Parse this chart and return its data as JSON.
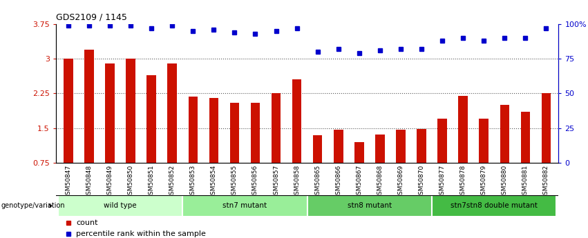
{
  "title": "GDS2109 / 1145",
  "samples": [
    "GSM50847",
    "GSM50848",
    "GSM50849",
    "GSM50850",
    "GSM50851",
    "GSM50852",
    "GSM50853",
    "GSM50854",
    "GSM50855",
    "GSM50856",
    "GSM50857",
    "GSM50858",
    "GSM50865",
    "GSM50866",
    "GSM50867",
    "GSM50868",
    "GSM50869",
    "GSM50870",
    "GSM50877",
    "GSM50878",
    "GSM50879",
    "GSM50880",
    "GSM50881",
    "GSM50882"
  ],
  "bar_values": [
    3.0,
    3.2,
    2.9,
    3.0,
    2.65,
    2.9,
    2.18,
    2.15,
    2.05,
    2.05,
    2.25,
    2.55,
    1.35,
    1.47,
    1.2,
    1.37,
    1.47,
    1.48,
    1.7,
    2.2,
    1.7,
    2.0,
    1.85,
    2.25
  ],
  "percentile_values": [
    99,
    99,
    99,
    99,
    97,
    99,
    95,
    96,
    94,
    93,
    95,
    97,
    80,
    82,
    79,
    81,
    82,
    82,
    88,
    90,
    88,
    90,
    90,
    97
  ],
  "bar_color": "#cc1100",
  "percentile_color": "#0000cc",
  "ylim_left": [
    0.75,
    3.75
  ],
  "ylim_right": [
    0,
    100
  ],
  "yticks_left": [
    0.75,
    1.5,
    2.25,
    3.0,
    3.75
  ],
  "ytick_labels_left": [
    "0.75",
    "1.5",
    "2.25",
    "3",
    "3.75"
  ],
  "ytick_labels_right": [
    "0",
    "25",
    "50",
    "75",
    "100%"
  ],
  "yticks_right": [
    0,
    25,
    50,
    75,
    100
  ],
  "hlines": [
    1.5,
    2.25,
    3.0
  ],
  "group_configs": [
    {
      "label": "wild type",
      "start": 0,
      "end": 5,
      "color": "#ccffcc"
    },
    {
      "label": "stn7 mutant",
      "start": 6,
      "end": 11,
      "color": "#99ee99"
    },
    {
      "label": "stn8 mutant",
      "start": 12,
      "end": 17,
      "color": "#66cc66"
    },
    {
      "label": "stn7stn8 double mutant",
      "start": 18,
      "end": 23,
      "color": "#44bb44"
    }
  ],
  "legend_count_label": "count",
  "legend_percentile_label": "percentile rank within the sample",
  "xtick_bg_color": "#cccccc",
  "dotted_line_color": "#555555",
  "bar_width": 0.45
}
